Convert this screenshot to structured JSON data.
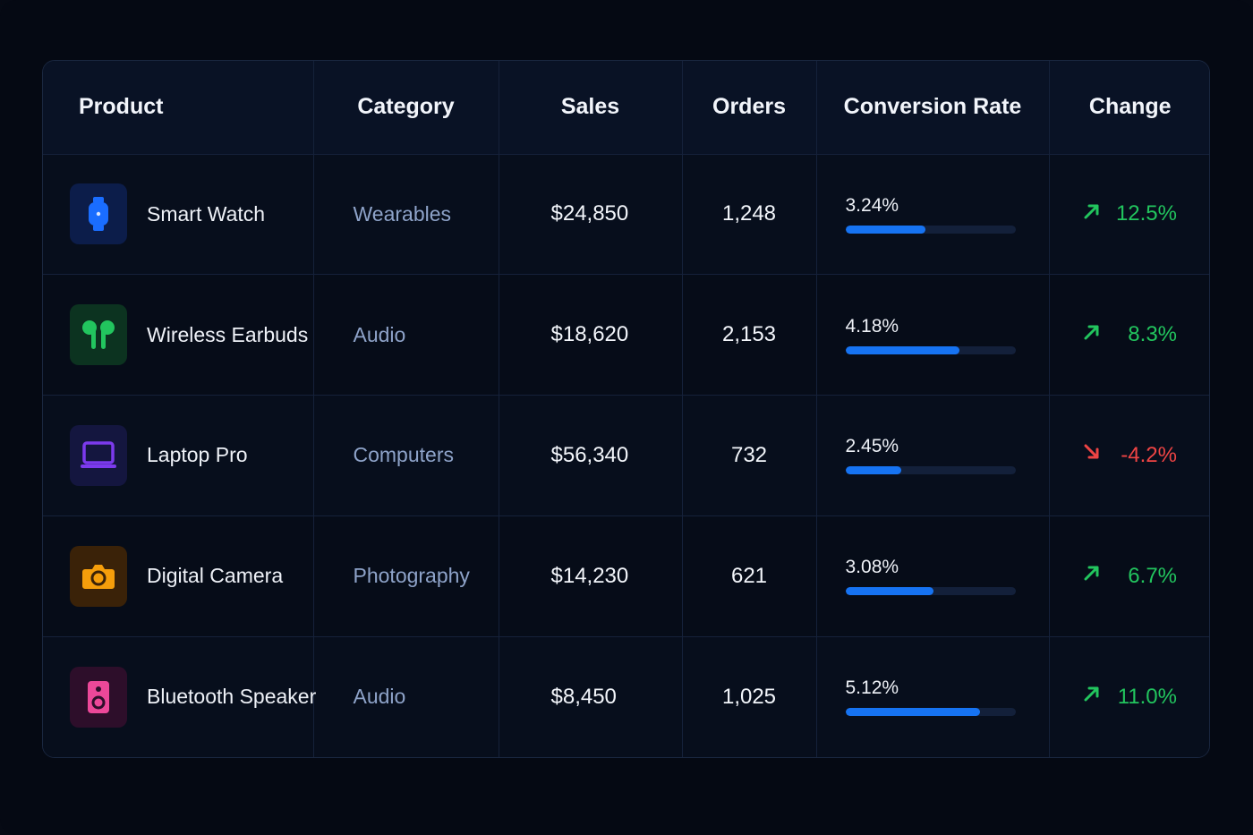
{
  "table": {
    "headers": {
      "product": "Product",
      "category": "Category",
      "sales": "Sales",
      "orders": "Orders",
      "conversion": "Conversion Rate",
      "change": "Change"
    },
    "rows": [
      {
        "product": "Smart Watch",
        "icon": "watch-icon",
        "icon_bg": "#0c1d4a",
        "icon_color": "#1a6dff",
        "category": "Wearables",
        "sales": "$24,850",
        "orders": "1,248",
        "conversion": "3.24%",
        "conversion_fill": 0.47,
        "change": "12.5%",
        "direction": "up"
      },
      {
        "product": "Wireless Earbuds",
        "icon": "earbuds-icon",
        "icon_bg": "#0c3320",
        "icon_color": "#22c55e",
        "category": "Audio",
        "sales": "$18,620",
        "orders": "2,153",
        "conversion": "4.18%",
        "conversion_fill": 0.67,
        "change": "8.3%",
        "direction": "up"
      },
      {
        "product": "Laptop Pro",
        "icon": "laptop-icon",
        "icon_bg": "#14163f",
        "icon_color": "#7c3aed",
        "category": "Computers",
        "sales": "$56,340",
        "orders": "732",
        "conversion": "2.45%",
        "conversion_fill": 0.33,
        "change": "-4.2%",
        "direction": "down"
      },
      {
        "product": "Digital Camera",
        "icon": "camera-icon",
        "icon_bg": "#3a2208",
        "icon_color": "#f59e0b",
        "category": "Photography",
        "sales": "$14,230",
        "orders": "621",
        "conversion": "3.08%",
        "conversion_fill": 0.52,
        "change": "6.7%",
        "direction": "up"
      },
      {
        "product": "Bluetooth Speaker",
        "icon": "speaker-icon",
        "icon_bg": "#2d0e2a",
        "icon_color": "#ec4899",
        "category": "Audio",
        "sales": "$8,450",
        "orders": "1,025",
        "conversion": "5.12%",
        "conversion_fill": 0.79,
        "change": "11.0%",
        "direction": "up"
      }
    ]
  },
  "colors": {
    "accent": "#1673f2",
    "positive": "#22c55e",
    "negative": "#ef4444"
  }
}
